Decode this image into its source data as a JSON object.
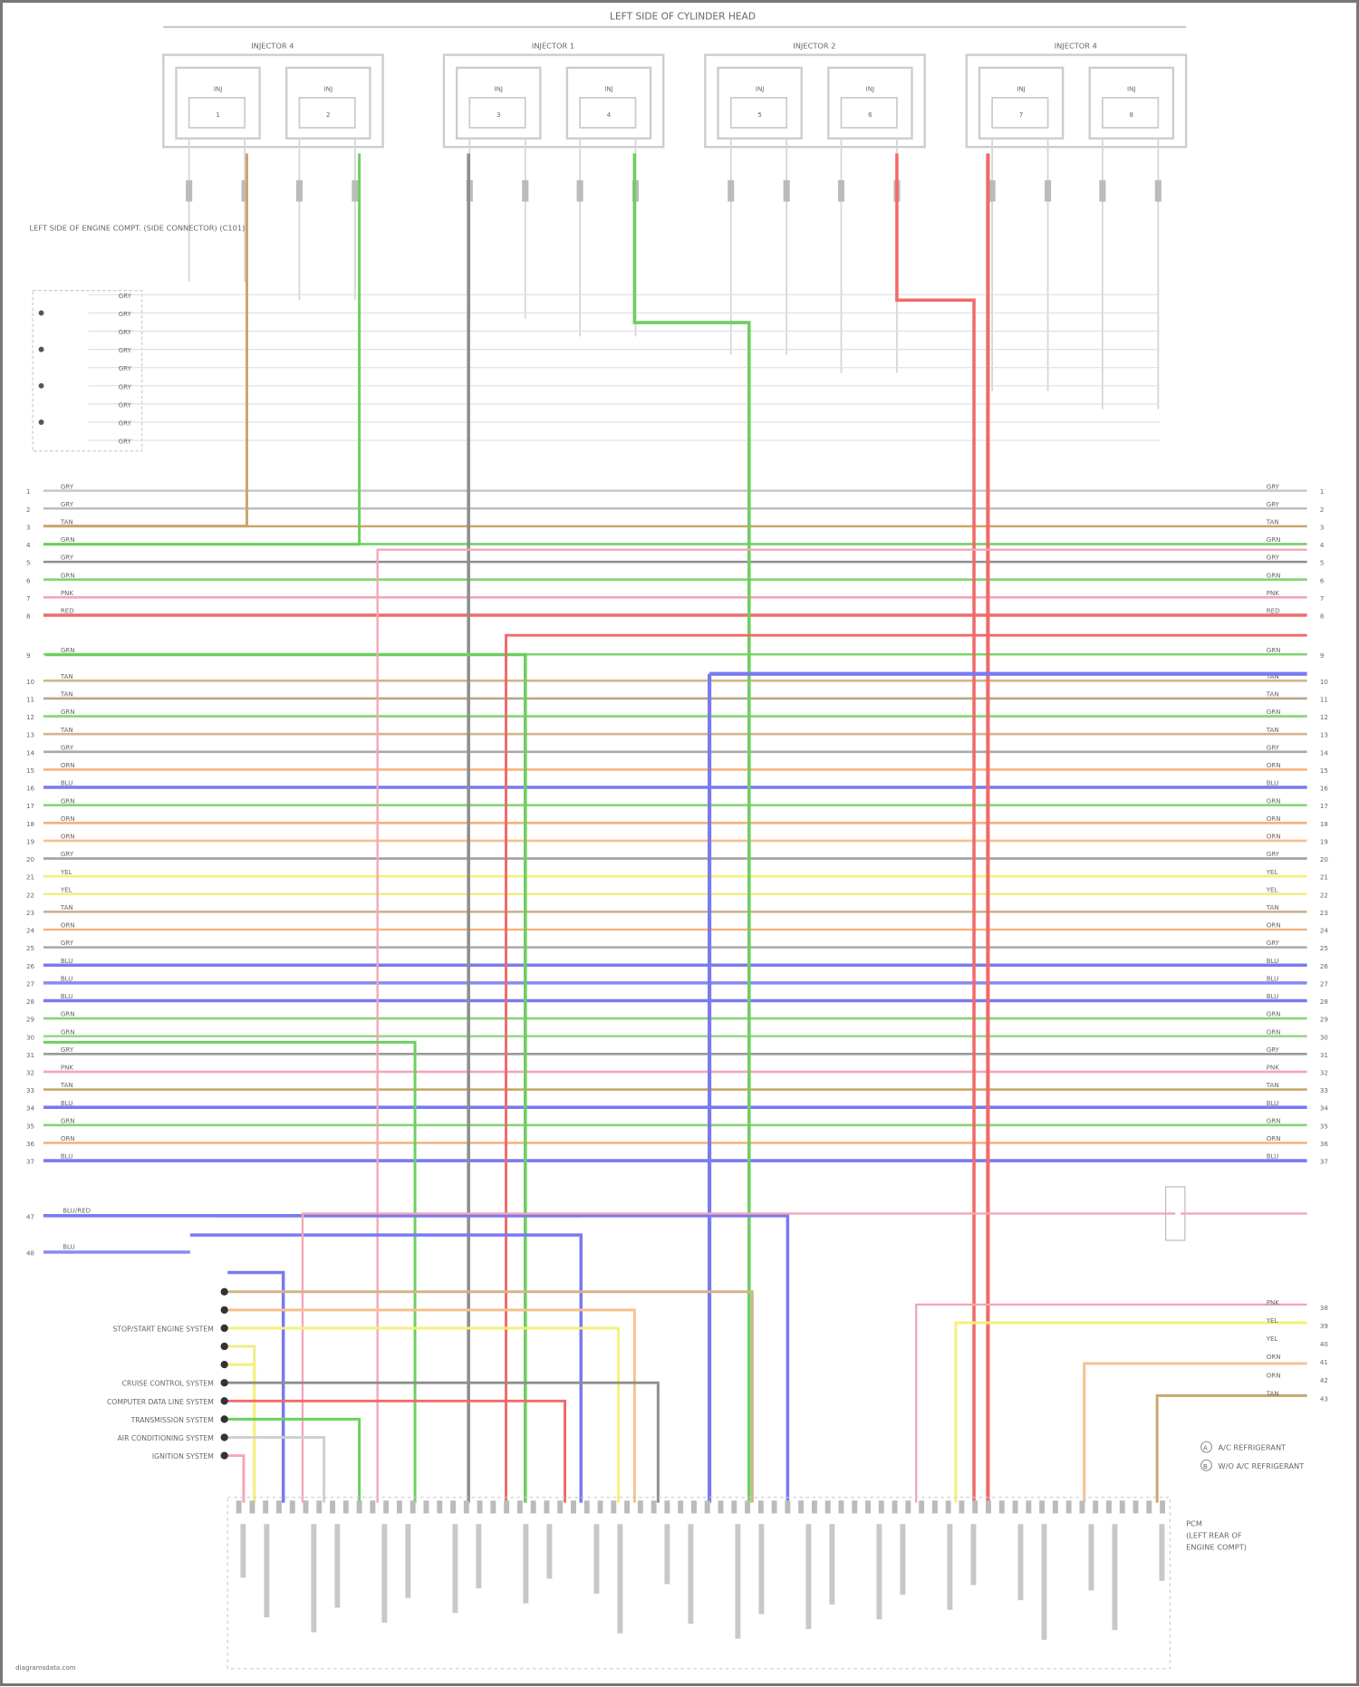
{
  "title": "LEFT SIDE OF CYLINDER HEAD",
  "injector_groups": [
    {
      "label": "INJECTOR 4",
      "injectors": [
        "1",
        "2"
      ]
    },
    {
      "label": "INJECTOR 1",
      "injectors": [
        "3",
        "4"
      ]
    },
    {
      "label": "INJECTOR 2",
      "injectors": [
        "5",
        "6"
      ]
    },
    {
      "label": "INJECTOR 4",
      "injectors": [
        "7",
        "8"
      ]
    }
  ],
  "injector_part_label": "INJ",
  "left_connector": {
    "label": "LEFT SIDE OF ENGINE COMPT. (SIDE CONNECTOR) (C101)",
    "pins": [
      "GRY",
      "GRY",
      "GRY",
      "GRY",
      "GRY",
      "GRY",
      "GRY",
      "GRY",
      "GRY"
    ]
  },
  "harness_wires": [
    {
      "pin": "1",
      "code": "GRY",
      "color": "#c8c8c8"
    },
    {
      "pin": "2",
      "code": "GRY",
      "color": "#bdbdbd"
    },
    {
      "pin": "3",
      "code": "TAN",
      "color": "#c9a66b"
    },
    {
      "pin": "4",
      "code": "GRN",
      "color": "#6ccf5e"
    },
    {
      "pin": "5",
      "code": "GRY",
      "color": "#8e8e8e"
    },
    {
      "pin": "6",
      "code": "GRN",
      "color": "#7fd46f"
    },
    {
      "pin": "7",
      "code": "PNK",
      "color": "#f4a6b5"
    },
    {
      "pin": "8",
      "code": "RED",
      "color": "#f06a6a"
    },
    {
      "pin": "9",
      "code": "GRN",
      "color": "#7fd46f"
    },
    {
      "pin": "10",
      "code": "TAN",
      "color": "#d2b48c"
    },
    {
      "pin": "11",
      "code": "TAN",
      "color": "#b9a58a"
    },
    {
      "pin": "12",
      "code": "GRN",
      "color": "#86d478"
    },
    {
      "pin": "13",
      "code": "TAN",
      "color": "#d2b48c"
    },
    {
      "pin": "14",
      "code": "GRY",
      "color": "#a9a9a9"
    },
    {
      "pin": "15",
      "code": "ORN",
      "color": "#f5b482"
    },
    {
      "pin": "16",
      "code": "BLU",
      "color": "#7a7af0"
    },
    {
      "pin": "17",
      "code": "GRN",
      "color": "#86d478"
    },
    {
      "pin": "18",
      "code": "ORN",
      "color": "#f7b07a"
    },
    {
      "pin": "19",
      "code": "ORN",
      "color": "#f7c08f"
    },
    {
      "pin": "20",
      "code": "GRY",
      "color": "#a0a0a0"
    },
    {
      "pin": "21",
      "code": "YEL",
      "color": "#f5f07a"
    },
    {
      "pin": "22",
      "code": "YEL",
      "color": "#f0ec8c"
    },
    {
      "pin": "23",
      "code": "TAN",
      "color": "#c9b08a"
    },
    {
      "pin": "24",
      "code": "ORN",
      "color": "#f5b482"
    },
    {
      "pin": "25",
      "code": "GRY",
      "color": "#a9a9a9"
    },
    {
      "pin": "26",
      "code": "BLU",
      "color": "#7a7af0"
    },
    {
      "pin": "27",
      "code": "BLU",
      "color": "#8a8af2"
    },
    {
      "pin": "28",
      "code": "BLU",
      "color": "#7a7af0"
    },
    {
      "pin": "29",
      "code": "GRN",
      "color": "#86d478"
    },
    {
      "pin": "30",
      "code": "GRN",
      "color": "#9ad88c"
    },
    {
      "pin": "31",
      "code": "GRY",
      "color": "#9a9a9a"
    },
    {
      "pin": "32",
      "code": "PNK",
      "color": "#f4a6b5"
    },
    {
      "pin": "33",
      "code": "TAN",
      "color": "#c9a66b"
    },
    {
      "pin": "34",
      "code": "BLU",
      "color": "#7a7af0"
    },
    {
      "pin": "35",
      "code": "GRN",
      "color": "#86d478"
    },
    {
      "pin": "36",
      "code": "ORN",
      "color": "#f5b482"
    },
    {
      "pin": "37",
      "code": "BLU",
      "color": "#7a7af0"
    }
  ],
  "side_inputs": [
    {
      "pin": "47",
      "code": "BLU/RED",
      "color": "#7a7af0"
    },
    {
      "pin": "48",
      "code": "BLU",
      "color": "#8a8af2"
    }
  ],
  "left_labels": [
    "",
    "",
    "STOP/START ENGINE SYSTEM",
    "",
    "",
    "CRUISE CONTROL SYSTEM",
    "COMPUTER DATA LINE SYSTEM",
    "TRANSMISSION SYSTEM",
    "AIR CONDITIONING SYSTEM",
    "IGNITION SYSTEM"
  ],
  "right_bottom_pins": [
    {
      "code": "PNK",
      "color": "#f4a6b5"
    },
    {
      "code": "YEL",
      "color": "#f5f07a"
    },
    {
      "code": "YEL",
      "color": "#f0ec8c"
    },
    {
      "code": "ORN",
      "color": "#f5b482"
    },
    {
      "code": "ORN",
      "color": "#f7c08f"
    },
    {
      "code": "TAN",
      "color": "#c9a66b"
    }
  ],
  "legend": [
    {
      "symbol": "A",
      "text": "A/C REFRIGERANT"
    },
    {
      "symbol": "B",
      "text": "W/O A/C REFRIGERANT"
    }
  ],
  "pcm_label": [
    "PCM",
    "(LEFT REAR OF",
    "ENGINE COMPT)"
  ],
  "footer": "diagramsdata.com"
}
